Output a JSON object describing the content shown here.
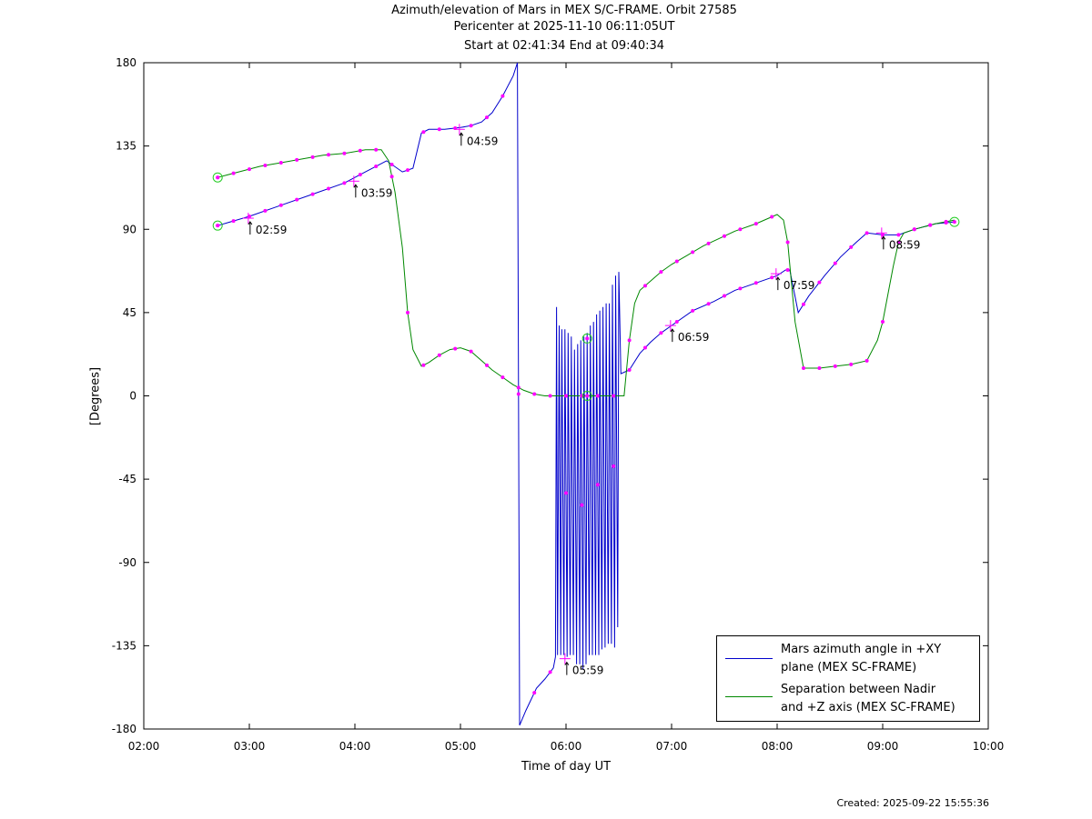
{
  "title": {
    "line1": "Azimuth/elevation of Mars in MEX S/C-FRAME.  Orbit 27585",
    "line2": "Pericenter at 2025-11-10 06:11:05UT",
    "line3": "Start at 02:41:34 End at 09:40:34"
  },
  "footer": {
    "created": "Created: 2025-09-22 15:55:36"
  },
  "chart_data": {
    "type": "line",
    "xlabel": "Time of day UT",
    "ylabel": "[Degrees]",
    "xlim": [
      2.0,
      10.0
    ],
    "ylim": [
      -180,
      180
    ],
    "x_ticks": [
      "02:00",
      "03:00",
      "04:00",
      "05:00",
      "06:00",
      "07:00",
      "08:00",
      "09:00",
      "10:00"
    ],
    "y_ticks": [
      180,
      135,
      90,
      45,
      0,
      -45,
      -90,
      -135,
      -180
    ],
    "grid": false,
    "legend_position": "bottom-right",
    "series": [
      {
        "name": "Mars azimuth angle in +XY plane (MEX SC-FRAME)",
        "color": "#0000cc",
        "points": [
          [
            2.7,
            92
          ],
          [
            3.0,
            97
          ],
          [
            3.3,
            103
          ],
          [
            3.6,
            109
          ],
          [
            3.9,
            115
          ],
          [
            4.1,
            121
          ],
          [
            4.3,
            127
          ],
          [
            4.45,
            121
          ],
          [
            4.55,
            123
          ],
          [
            4.63,
            142
          ],
          [
            4.7,
            144
          ],
          [
            4.85,
            144
          ],
          [
            5.0,
            145
          ],
          [
            5.1,
            146
          ],
          [
            5.2,
            148
          ],
          [
            5.3,
            153
          ],
          [
            5.4,
            162
          ],
          [
            5.5,
            173
          ],
          [
            5.54,
            180
          ],
          [
            5.56,
            -178
          ],
          [
            5.62,
            -170
          ],
          [
            5.72,
            -158
          ],
          [
            5.8,
            -153
          ],
          [
            5.88,
            -147
          ],
          [
            5.9,
            -141
          ],
          [
            5.91,
            48
          ],
          [
            5.92,
            -140
          ],
          [
            5.935,
            38
          ],
          [
            5.95,
            -140
          ],
          [
            5.96,
            36
          ],
          [
            5.98,
            -140
          ],
          [
            5.99,
            36
          ],
          [
            6.01,
            -141
          ],
          [
            6.02,
            34
          ],
          [
            6.04,
            -140
          ],
          [
            6.05,
            32
          ],
          [
            6.07,
            -140
          ],
          [
            6.08,
            25
          ],
          [
            6.1,
            -145
          ],
          [
            6.11,
            28
          ],
          [
            6.13,
            -145
          ],
          [
            6.14,
            30
          ],
          [
            6.16,
            -148
          ],
          [
            6.17,
            32
          ],
          [
            6.19,
            -145
          ],
          [
            6.2,
            34
          ],
          [
            6.22,
            -140
          ],
          [
            6.23,
            38
          ],
          [
            6.25,
            -140
          ],
          [
            6.26,
            40
          ],
          [
            6.28,
            -140
          ],
          [
            6.29,
            44
          ],
          [
            6.31,
            -140
          ],
          [
            6.32,
            46
          ],
          [
            6.34,
            -137
          ],
          [
            6.35,
            48
          ],
          [
            6.37,
            -136
          ],
          [
            6.38,
            50
          ],
          [
            6.4,
            -134
          ],
          [
            6.41,
            50
          ],
          [
            6.43,
            -134
          ],
          [
            6.44,
            60
          ],
          [
            6.46,
            -136
          ],
          [
            6.47,
            65
          ],
          [
            6.49,
            -125
          ],
          [
            6.5,
            67
          ],
          [
            6.52,
            12
          ],
          [
            6.6,
            14
          ],
          [
            6.7,
            23
          ],
          [
            6.8,
            29
          ],
          [
            6.9,
            34
          ],
          [
            7.0,
            38
          ],
          [
            7.2,
            46
          ],
          [
            7.4,
            51
          ],
          [
            7.6,
            57
          ],
          [
            7.8,
            61
          ],
          [
            8.0,
            65
          ],
          [
            8.08,
            68
          ],
          [
            8.12,
            68
          ],
          [
            8.2,
            45
          ],
          [
            8.3,
            54
          ],
          [
            8.45,
            65
          ],
          [
            8.6,
            75
          ],
          [
            8.75,
            83
          ],
          [
            8.85,
            88
          ],
          [
            9.0,
            87
          ],
          [
            9.15,
            87
          ],
          [
            9.3,
            90
          ],
          [
            9.5,
            93
          ],
          [
            9.68,
            94
          ]
        ]
      },
      {
        "name": "Separation between Nadir and +Z axis (MEX SC-FRAME)",
        "color": "#008800",
        "points": [
          [
            2.7,
            118
          ],
          [
            2.9,
            121
          ],
          [
            3.1,
            124
          ],
          [
            3.3,
            126
          ],
          [
            3.5,
            128
          ],
          [
            3.7,
            130
          ],
          [
            3.9,
            131
          ],
          [
            4.1,
            133
          ],
          [
            4.25,
            133
          ],
          [
            4.32,
            127
          ],
          [
            4.38,
            110
          ],
          [
            4.45,
            80
          ],
          [
            4.5,
            45
          ],
          [
            4.55,
            25
          ],
          [
            4.63,
            16
          ],
          [
            4.7,
            18
          ],
          [
            4.8,
            22
          ],
          [
            4.9,
            25
          ],
          [
            5.0,
            26
          ],
          [
            5.1,
            24
          ],
          [
            5.2,
            19
          ],
          [
            5.3,
            14
          ],
          [
            5.4,
            10
          ],
          [
            5.5,
            6
          ],
          [
            5.6,
            3
          ],
          [
            5.7,
            1
          ],
          [
            5.8,
            0
          ],
          [
            6.0,
            0
          ],
          [
            6.2,
            0
          ],
          [
            6.4,
            0
          ],
          [
            6.55,
            0
          ],
          [
            6.6,
            30
          ],
          [
            6.65,
            50
          ],
          [
            6.7,
            57
          ],
          [
            6.8,
            62
          ],
          [
            6.9,
            67
          ],
          [
            7.0,
            71
          ],
          [
            7.15,
            76
          ],
          [
            7.3,
            81
          ],
          [
            7.45,
            85
          ],
          [
            7.6,
            89
          ],
          [
            7.8,
            93
          ],
          [
            8.0,
            98
          ],
          [
            8.06,
            95
          ],
          [
            8.1,
            83
          ],
          [
            8.17,
            40
          ],
          [
            8.25,
            15
          ],
          [
            8.4,
            15
          ],
          [
            8.55,
            16
          ],
          [
            8.7,
            17
          ],
          [
            8.85,
            19
          ],
          [
            8.95,
            30
          ],
          [
            9.0,
            40
          ],
          [
            9.05,
            55
          ],
          [
            9.1,
            70
          ],
          [
            9.15,
            83
          ],
          [
            9.2,
            88
          ],
          [
            9.3,
            90
          ],
          [
            9.5,
            93
          ],
          [
            9.68,
            95
          ]
        ]
      }
    ],
    "marker_color": "#ff00ff",
    "marker_times": [
      2.7,
      2.85,
      3.0,
      3.15,
      3.3,
      3.45,
      3.6,
      3.75,
      3.9,
      4.05,
      4.2,
      4.35,
      4.5,
      4.65,
      4.8,
      4.95,
      5.1,
      5.25,
      5.4,
      5.55,
      5.7,
      5.85,
      6.0,
      6.15,
      6.3,
      6.45,
      6.6,
      6.75,
      6.9,
      7.05,
      7.2,
      7.35,
      7.5,
      7.65,
      7.8,
      7.95,
      8.1,
      8.25,
      8.4,
      8.55,
      8.7,
      8.85,
      9.0,
      9.15,
      9.3,
      9.45,
      9.6
    ],
    "annotations": [
      {
        "label": "02:59",
        "x": 2.99,
        "y": 96
      },
      {
        "label": "03:59",
        "x": 3.99,
        "y": 116
      },
      {
        "label": "04:59",
        "x": 4.99,
        "y": 144
      },
      {
        "label": "05:59",
        "x": 5.99,
        "y": -142
      },
      {
        "label": "06:59",
        "x": 6.99,
        "y": 38
      },
      {
        "label": "07:59",
        "x": 7.99,
        "y": 66
      },
      {
        "label": "08:59",
        "x": 8.99,
        "y": 88
      }
    ],
    "circle_markers": [
      {
        "x": 2.7,
        "y": 118
      },
      {
        "x": 2.7,
        "y": 92
      },
      {
        "x": 6.2,
        "y": 31
      },
      {
        "x": 6.2,
        "y": 0
      },
      {
        "x": 9.68,
        "y": 94
      }
    ]
  },
  "legend": {
    "entry1_line1": "Mars azimuth angle in +XY",
    "entry1_line2": "plane (MEX SC-FRAME)",
    "entry2_line1": "Separation between Nadir",
    "entry2_line2": "and +Z axis (MEX SC-FRAME)"
  }
}
